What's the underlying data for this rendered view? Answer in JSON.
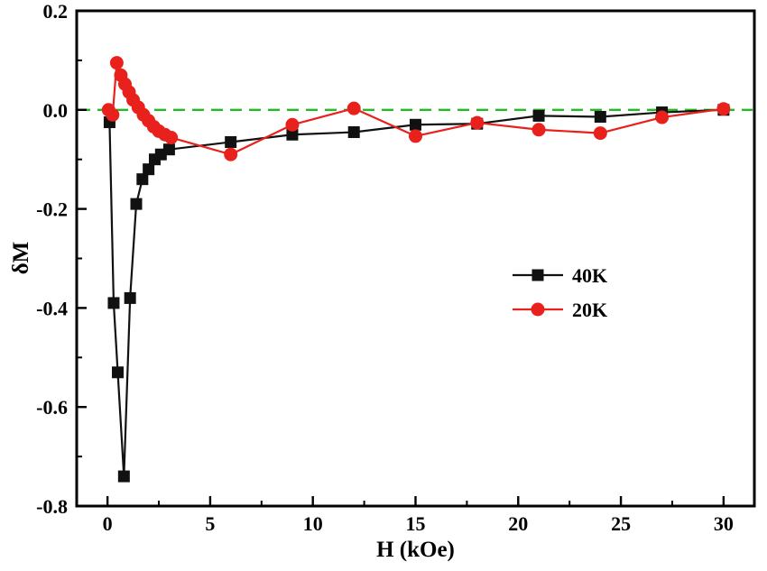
{
  "chart_data": {
    "type": "line",
    "title": "",
    "xlabel": "H (kOe)",
    "ylabel": "δM",
    "xlim": [
      -1.5,
      31.5
    ],
    "ylim": [
      -0.8,
      0.2
    ],
    "grid": false,
    "legend_position": "middle-right",
    "axis_color": "#000000",
    "x_ticks": [
      {
        "v": 0,
        "label": "0"
      },
      {
        "v": 5,
        "label": "5"
      },
      {
        "v": 10,
        "label": "10"
      },
      {
        "v": 15,
        "label": "15"
      },
      {
        "v": 20,
        "label": "20"
      },
      {
        "v": 25,
        "label": "25"
      },
      {
        "v": 30,
        "label": "30"
      }
    ],
    "y_ticks": [
      {
        "v": 0.2,
        "label": "0.2"
      },
      {
        "v": 0.0,
        "label": "0.0"
      },
      {
        "v": -0.2,
        "label": "-0.2"
      },
      {
        "v": -0.4,
        "label": "-0.4"
      },
      {
        "v": -0.6,
        "label": "-0.6"
      },
      {
        "v": -0.8,
        "label": "-0.8"
      }
    ],
    "reference_line": {
      "y": 0.0,
      "style": "dashed",
      "color": "#22bb22"
    },
    "series": [
      {
        "name": "40K",
        "color": "#111111",
        "marker": "square",
        "x": [
          0.1,
          0.3,
          0.5,
          0.8,
          1.1,
          1.4,
          1.7,
          2.0,
          2.3,
          2.6,
          3.0,
          6,
          9,
          12,
          15,
          18,
          21,
          24,
          27,
          30
        ],
        "y": [
          -0.025,
          -0.39,
          -0.53,
          -0.74,
          -0.38,
          -0.19,
          -0.14,
          -0.12,
          -0.1,
          -0.09,
          -0.08,
          -0.065,
          -0.05,
          -0.045,
          -0.03,
          -0.028,
          -0.012,
          -0.014,
          -0.005,
          0.0
        ]
      },
      {
        "name": "20K",
        "color": "#e8211c",
        "marker": "circle",
        "x": [
          0.05,
          0.25,
          0.45,
          0.65,
          0.85,
          1.05,
          1.25,
          1.5,
          1.75,
          2.0,
          2.25,
          2.5,
          2.8,
          3.1,
          6,
          9,
          12,
          15,
          18,
          21,
          24,
          27,
          30
        ],
        "y": [
          0.0,
          -0.01,
          0.095,
          0.07,
          0.052,
          0.036,
          0.02,
          0.005,
          -0.01,
          -0.022,
          -0.034,
          -0.043,
          -0.05,
          -0.056,
          -0.09,
          -0.03,
          0.003,
          -0.053,
          -0.026,
          -0.04,
          -0.047,
          -0.015,
          0.002
        ]
      }
    ],
    "legend": {
      "items": [
        {
          "label": "40K"
        },
        {
          "label": "20K"
        }
      ]
    }
  }
}
